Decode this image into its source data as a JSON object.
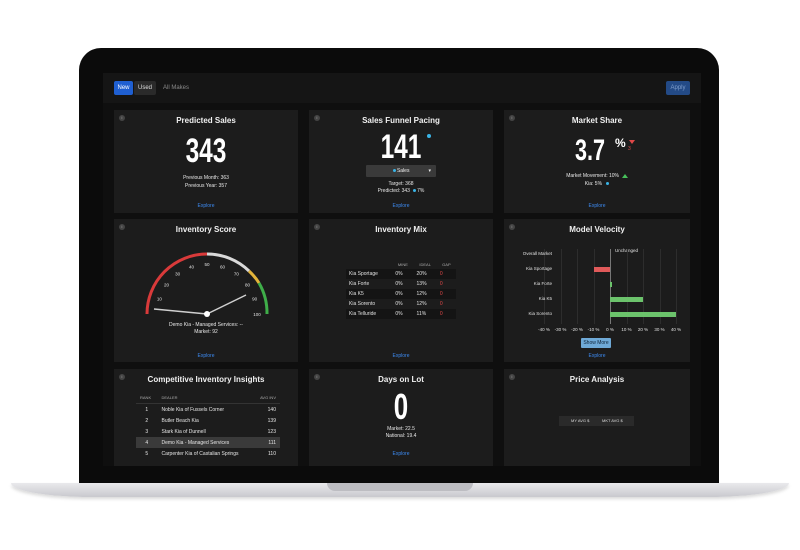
{
  "toolbar": {
    "new_label": "New",
    "used_label": "Used",
    "makes_placeholder": "All Makes",
    "apply_label": "Apply"
  },
  "colors": {
    "accent": "#1f5fd1",
    "link": "#3d8bf2",
    "up": "#46c05a",
    "down": "#e04848",
    "cyan": "#3ab4e6"
  },
  "predicted_sales": {
    "title": "Predicted Sales",
    "value": "343",
    "previous_month": "Previous Month: 363",
    "previous_year": "Previous Year: 357",
    "explore": "Explore"
  },
  "sales_funnel": {
    "title": "Sales Funnel Pacing",
    "value": "141",
    "dropdown": "Sales",
    "target": "Target: 368",
    "predicted": "Predicted: 343",
    "predicted_pct": "7%",
    "explore": "Explore"
  },
  "market_share": {
    "title": "Market Share",
    "value": "3.7",
    "unit": "%",
    "delta": "3",
    "movement": "Market Movement: 10%",
    "kia": "Kia: 5%",
    "explore": "Explore"
  },
  "inventory_score": {
    "title": "Inventory Score",
    "ticks": [
      "10",
      "20",
      "30",
      "40",
      "50",
      "60",
      "70",
      "80",
      "90",
      "100"
    ],
    "dealer": "Demo Kia - Managed Services: --",
    "market": "Market: 92",
    "explore": "Explore",
    "dealer_value": 0,
    "market_value": 92
  },
  "inventory_mix": {
    "title": "Inventory Mix",
    "headers": [
      "",
      "MINE",
      "IDEAL",
      "GAP"
    ],
    "rows": [
      [
        "Kia Sportage",
        "0%",
        "20%",
        "0"
      ],
      [
        "Kia Forte",
        "0%",
        "13%",
        "0"
      ],
      [
        "Kia K5",
        "0%",
        "12%",
        "0"
      ],
      [
        "Kia Sorento",
        "0%",
        "12%",
        "0"
      ],
      [
        "Kia Telluride",
        "0%",
        "11%",
        "0"
      ]
    ],
    "explore": "Explore"
  },
  "model_velocity": {
    "title": "Model Velocity",
    "unchanged": "Unchanged",
    "models": [
      "Overall Market",
      "Kia Sportage",
      "Kia Forte",
      "Kia K5",
      "Kia Sorento"
    ],
    "values": [
      0,
      -10,
      1,
      20,
      40
    ],
    "axis": [
      "-40 %",
      "-30 %",
      "-20 %",
      "-10 %",
      "0 %",
      "10 %",
      "20 %",
      "30 %",
      "40 %"
    ],
    "show_more": "Show More",
    "explore": "Explore"
  },
  "competitive": {
    "title": "Competitive Inventory Insights",
    "headers": [
      "RANK",
      "DEALER",
      "AVG INV"
    ],
    "rows": [
      [
        "1",
        "Noble Kia of Fussels Corner",
        "140"
      ],
      [
        "2",
        "Butler Beach Kia",
        "139"
      ],
      [
        "3",
        "Stark Kia of Dunnell",
        "123"
      ],
      [
        "4",
        "Demo Kia - Managed Services",
        "111"
      ],
      [
        "5",
        "Carpenter Kia of Castalian Springs",
        "110"
      ]
    ]
  },
  "days_on_lot": {
    "title": "Days on Lot",
    "value": "0",
    "market": "Market: 22.5",
    "national": "National: 19.4",
    "explore": "Explore"
  },
  "price_analysis": {
    "title": "Price Analysis",
    "my_avg": "MY AVG $",
    "mkt_avg": "MKT AVG $"
  }
}
